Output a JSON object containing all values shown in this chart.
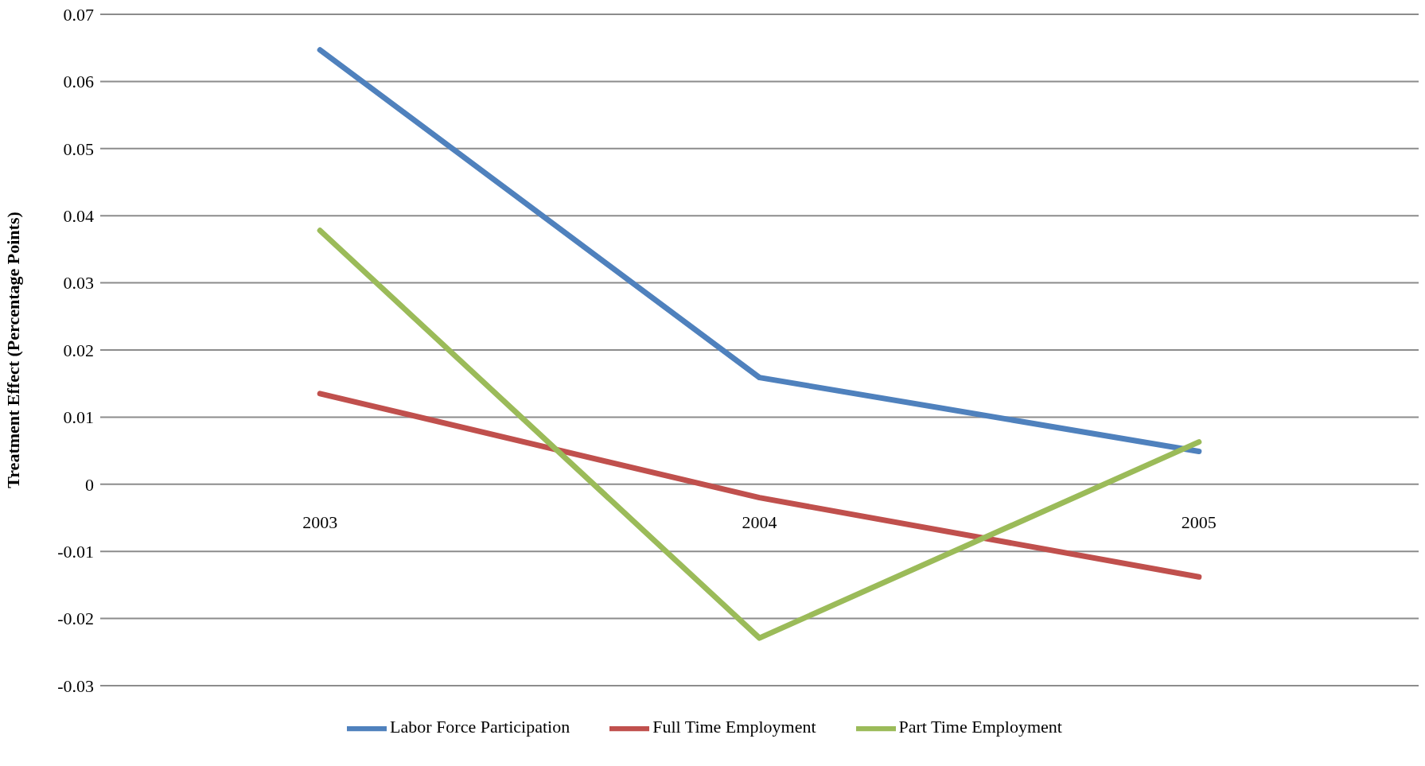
{
  "chart_data": {
    "type": "line",
    "ylabel": "Treatment Effect (Percentage Points)",
    "categories": [
      "2003",
      "2004",
      "2005"
    ],
    "series": [
      {
        "name": "Labor Force Participation",
        "color": "#4f81bd",
        "values": [
          0.0647,
          0.0159,
          0.0049
        ]
      },
      {
        "name": "Full Time Employment",
        "color": "#c0504d",
        "values": [
          0.0135,
          -0.002,
          -0.0138
        ]
      },
      {
        "name": "Part Time Employment",
        "color": "#9bbb59",
        "values": [
          0.0378,
          -0.0229,
          0.0063
        ]
      }
    ],
    "ylim": [
      -0.03,
      0.07
    ],
    "yticks": [
      -0.03,
      -0.02,
      -0.01,
      0,
      0.01,
      0.02,
      0.03,
      0.04,
      0.05,
      0.06,
      0.07
    ],
    "grid": "y",
    "legend": "bottom",
    "marker": "none",
    "line_style": "solid"
  }
}
